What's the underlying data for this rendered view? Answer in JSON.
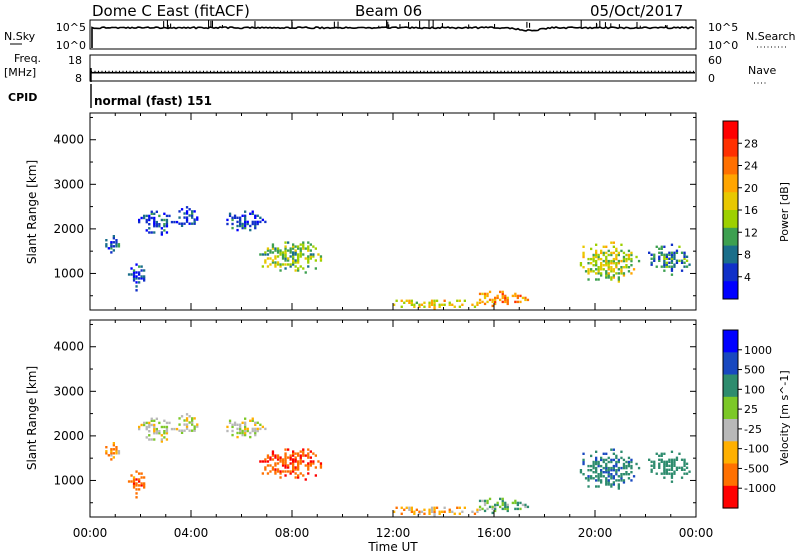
{
  "header": {
    "station": "Dome C East (fitACF)",
    "beam": "Beam 06",
    "date": "05/Oct/2017"
  },
  "nsky": {
    "label": "N.Sky",
    "ticks_left": [
      "10^5",
      "10^0"
    ],
    "label_right": "N.Search",
    "ticks_right": [
      "10^5",
      "10^0"
    ]
  },
  "freq": {
    "label_line1": "Freq.",
    "label_line2": "[MHz]",
    "ticks_left": [
      "18",
      "8"
    ],
    "label_right": "Nave",
    "ticks_right": [
      "60",
      "0"
    ],
    "cpid_label": "CPID",
    "cpid_text": "normal (fast) 151"
  },
  "axes": {
    "ylabel": "Slant Range [km]",
    "yticks": [
      "4000",
      "3000",
      "2000",
      "1000"
    ],
    "xlabel": "Time UT",
    "xticks": [
      "00:00",
      "04:00",
      "08:00",
      "12:00",
      "16:00",
      "20:00",
      "00:00"
    ]
  },
  "power_scale": {
    "label": "Power [dB]",
    "ticks": [
      "28",
      "24",
      "20",
      "16",
      "12",
      "8",
      "4"
    ],
    "colors": [
      "#ff0000",
      "#ff3000",
      "#ff7000",
      "#ffa500",
      "#e8c800",
      "#9dd000",
      "#3da050",
      "#1a6e8a",
      "#1030c8",
      "#0000ff"
    ]
  },
  "velocity_scale": {
    "label": "Velocity [m s^-1]",
    "ticks": [
      "1000",
      "500",
      "100",
      "25",
      "-25",
      "-100",
      "-500",
      "-1000"
    ],
    "colors": [
      "#0000ff",
      "#1848c0",
      "#2e8c6e",
      "#7cc828",
      "#b8b8b8",
      "#ffb000",
      "#ff7000",
      "#ff0000"
    ]
  },
  "chart_data": {
    "type": "heatmap",
    "title": "Dome C East (fitACF)  Beam 06  05/Oct/2017",
    "xlabel": "Time UT",
    "ylabel": "Slant Range [km]",
    "xlim": [
      0,
      24
    ],
    "ylim": [
      180,
      4600
    ],
    "echo_regions": [
      {
        "t0": 0.5,
        "t1": 1.3,
        "r0": 1400,
        "r1": 1900,
        "power": 8,
        "velocity": -100
      },
      {
        "t0": 1.5,
        "t1": 2.3,
        "r0": 550,
        "r1": 1350,
        "power": 8,
        "velocity": -300
      },
      {
        "t0": 1.7,
        "t1": 3.6,
        "r0": 1800,
        "r1": 2450,
        "power": 6,
        "velocity": 0
      },
      {
        "t0": 3.3,
        "t1": 4.4,
        "r0": 1950,
        "r1": 2550,
        "power": 6,
        "velocity": 10
      },
      {
        "t0": 5.2,
        "t1": 7.2,
        "r0": 1900,
        "r1": 2450,
        "power": 6,
        "velocity": 5
      },
      {
        "t0": 6.4,
        "t1": 9.6,
        "r0": 950,
        "r1": 1800,
        "power": 14,
        "velocity": -400
      },
      {
        "t0": 11.3,
        "t1": 15.8,
        "r0": 180,
        "r1": 450,
        "power": 18,
        "velocity": -60
      },
      {
        "t0": 15.0,
        "t1": 17.7,
        "r0": 200,
        "r1": 650,
        "power": 22,
        "velocity": 80
      },
      {
        "t0": 19.0,
        "t1": 22.0,
        "r0": 700,
        "r1": 1800,
        "power": 16,
        "velocity": 400
      },
      {
        "t0": 22.0,
        "t1": 23.9,
        "r0": 900,
        "r1": 1750,
        "power": 10,
        "velocity": 300
      }
    ],
    "nsky_level": 0.75,
    "freq_mhz": 11.2,
    "nave_level": 22
  }
}
